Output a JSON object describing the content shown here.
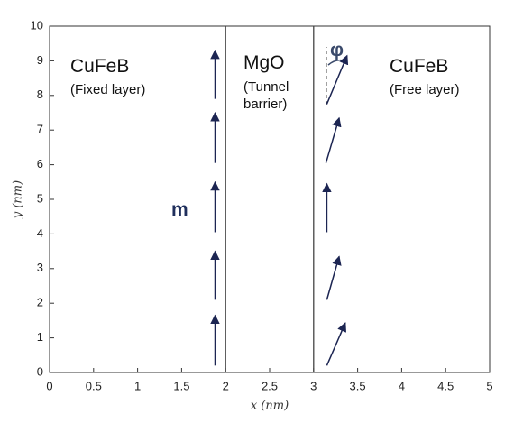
{
  "chart_data": {
    "type": "quiver",
    "xlabel": "x (nm)",
    "ylabel": "y (nm)",
    "xlim": [
      0,
      5
    ],
    "ylim": [
      0,
      10
    ],
    "xticks": [
      0,
      0.5,
      1,
      1.5,
      2,
      2.5,
      3,
      3.5,
      4,
      4.5,
      5
    ],
    "yticks": [
      0,
      1,
      2,
      3,
      4,
      5,
      6,
      7,
      8,
      9,
      10
    ],
    "boundaries": [
      2,
      3
    ],
    "color": "#1c2552",
    "arrows": [
      {
        "x0": 1.88,
        "y0": 0.2,
        "x1": 1.88,
        "y1": 1.65
      },
      {
        "x0": 1.88,
        "y0": 2.1,
        "x1": 1.88,
        "y1": 3.5
      },
      {
        "x0": 1.88,
        "y0": 4.05,
        "x1": 1.88,
        "y1": 5.5
      },
      {
        "x0": 1.88,
        "y0": 6.05,
        "x1": 1.88,
        "y1": 7.5
      },
      {
        "x0": 1.88,
        "y0": 7.9,
        "x1": 1.88,
        "y1": 9.3
      },
      {
        "x0": 3.15,
        "y0": 0.2,
        "x1": 3.36,
        "y1": 1.43
      },
      {
        "x0": 3.15,
        "y0": 2.1,
        "x1": 3.29,
        "y1": 3.35
      },
      {
        "x0": 3.15,
        "y0": 4.05,
        "x1": 3.15,
        "y1": 5.45
      },
      {
        "x0": 3.14,
        "y0": 6.05,
        "x1": 3.29,
        "y1": 7.35
      },
      {
        "x0": 3.15,
        "y0": 7.75,
        "x1": 3.38,
        "y1": 9.15
      }
    ],
    "annotations": [
      "CuFeB",
      "(Fixed layer)",
      "MgO",
      "(Tunnel",
      "barrier)",
      "CuFeB",
      "(Free layer)",
      "m",
      "φ"
    ]
  }
}
